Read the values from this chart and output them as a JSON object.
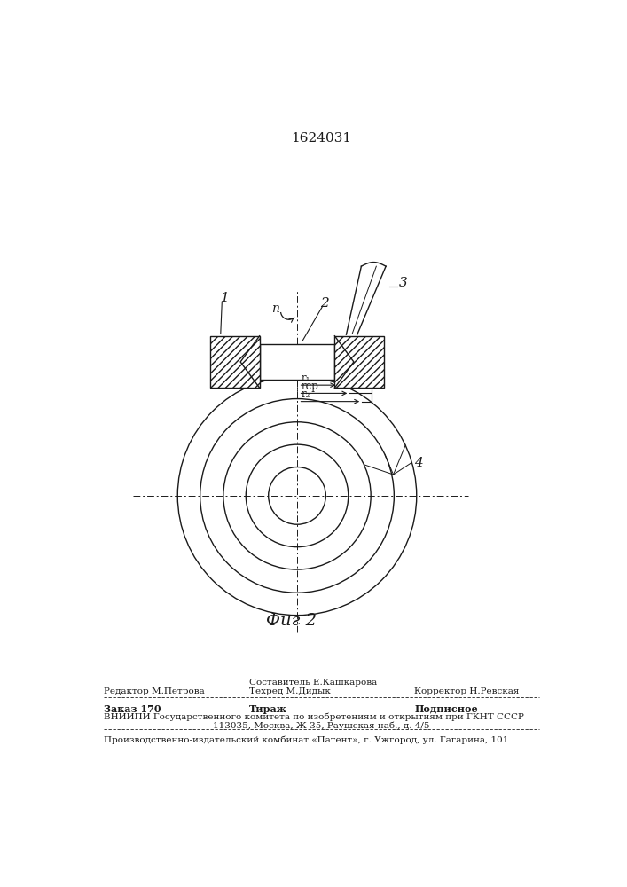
{
  "title": "1624031",
  "fig_label": "Φиг 2",
  "background_color": "#ffffff",
  "line_color": "#1a1a1a",
  "label_1": "1",
  "label_2": "2",
  "label_3": "3",
  "label_4": "4",
  "label_n": "n",
  "label_r1": "r₁",
  "label_rsr": "rср",
  "label_r2": "r₂",
  "footer_line0_mid": "Составитель Е.Кашкарова",
  "footer_line1_left": "Редактор М.Петрова",
  "footer_line1_mid": "Техред М.Дидык",
  "footer_line1_right": "Корректор Н.Ревская",
  "footer_line2_left": "Заказ 170",
  "footer_line2_mid": "Тираж",
  "footer_line2_right": "Подписное",
  "footer_line3": "ВНИИПИ Государственного комитета по изобретениям и открытиям при ГКНТ СССР",
  "footer_line4": "113035, Москва, Ж-35, Раушская наб., д. 4/5",
  "footer_line5": "Производственно-издательский комбинат «Патент», г. Ужгород, ул. Гагарина, 101"
}
